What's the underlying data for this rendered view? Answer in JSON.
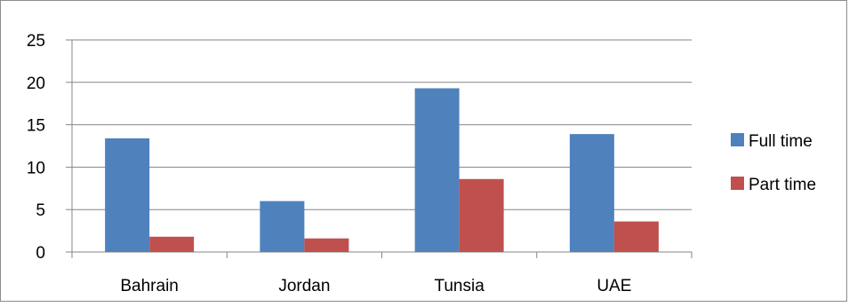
{
  "chart_data": {
    "type": "bar",
    "title": "",
    "xlabel": "",
    "ylabel": "",
    "categories": [
      "Bahrain",
      "Jordan",
      "Tunsia",
      "UAE"
    ],
    "series": [
      {
        "name": "Full time",
        "values": [
          13.4,
          6.0,
          19.3,
          13.9
        ],
        "color": "#4f81bd"
      },
      {
        "name": "Part time",
        "values": [
          1.8,
          1.6,
          8.6,
          3.6
        ],
        "color": "#c0504d"
      }
    ],
    "ylim": [
      0,
      25
    ],
    "yticks": [
      "0",
      "5",
      "10",
      "15",
      "20",
      "25"
    ],
    "grid": true,
    "legend_position": "right"
  }
}
